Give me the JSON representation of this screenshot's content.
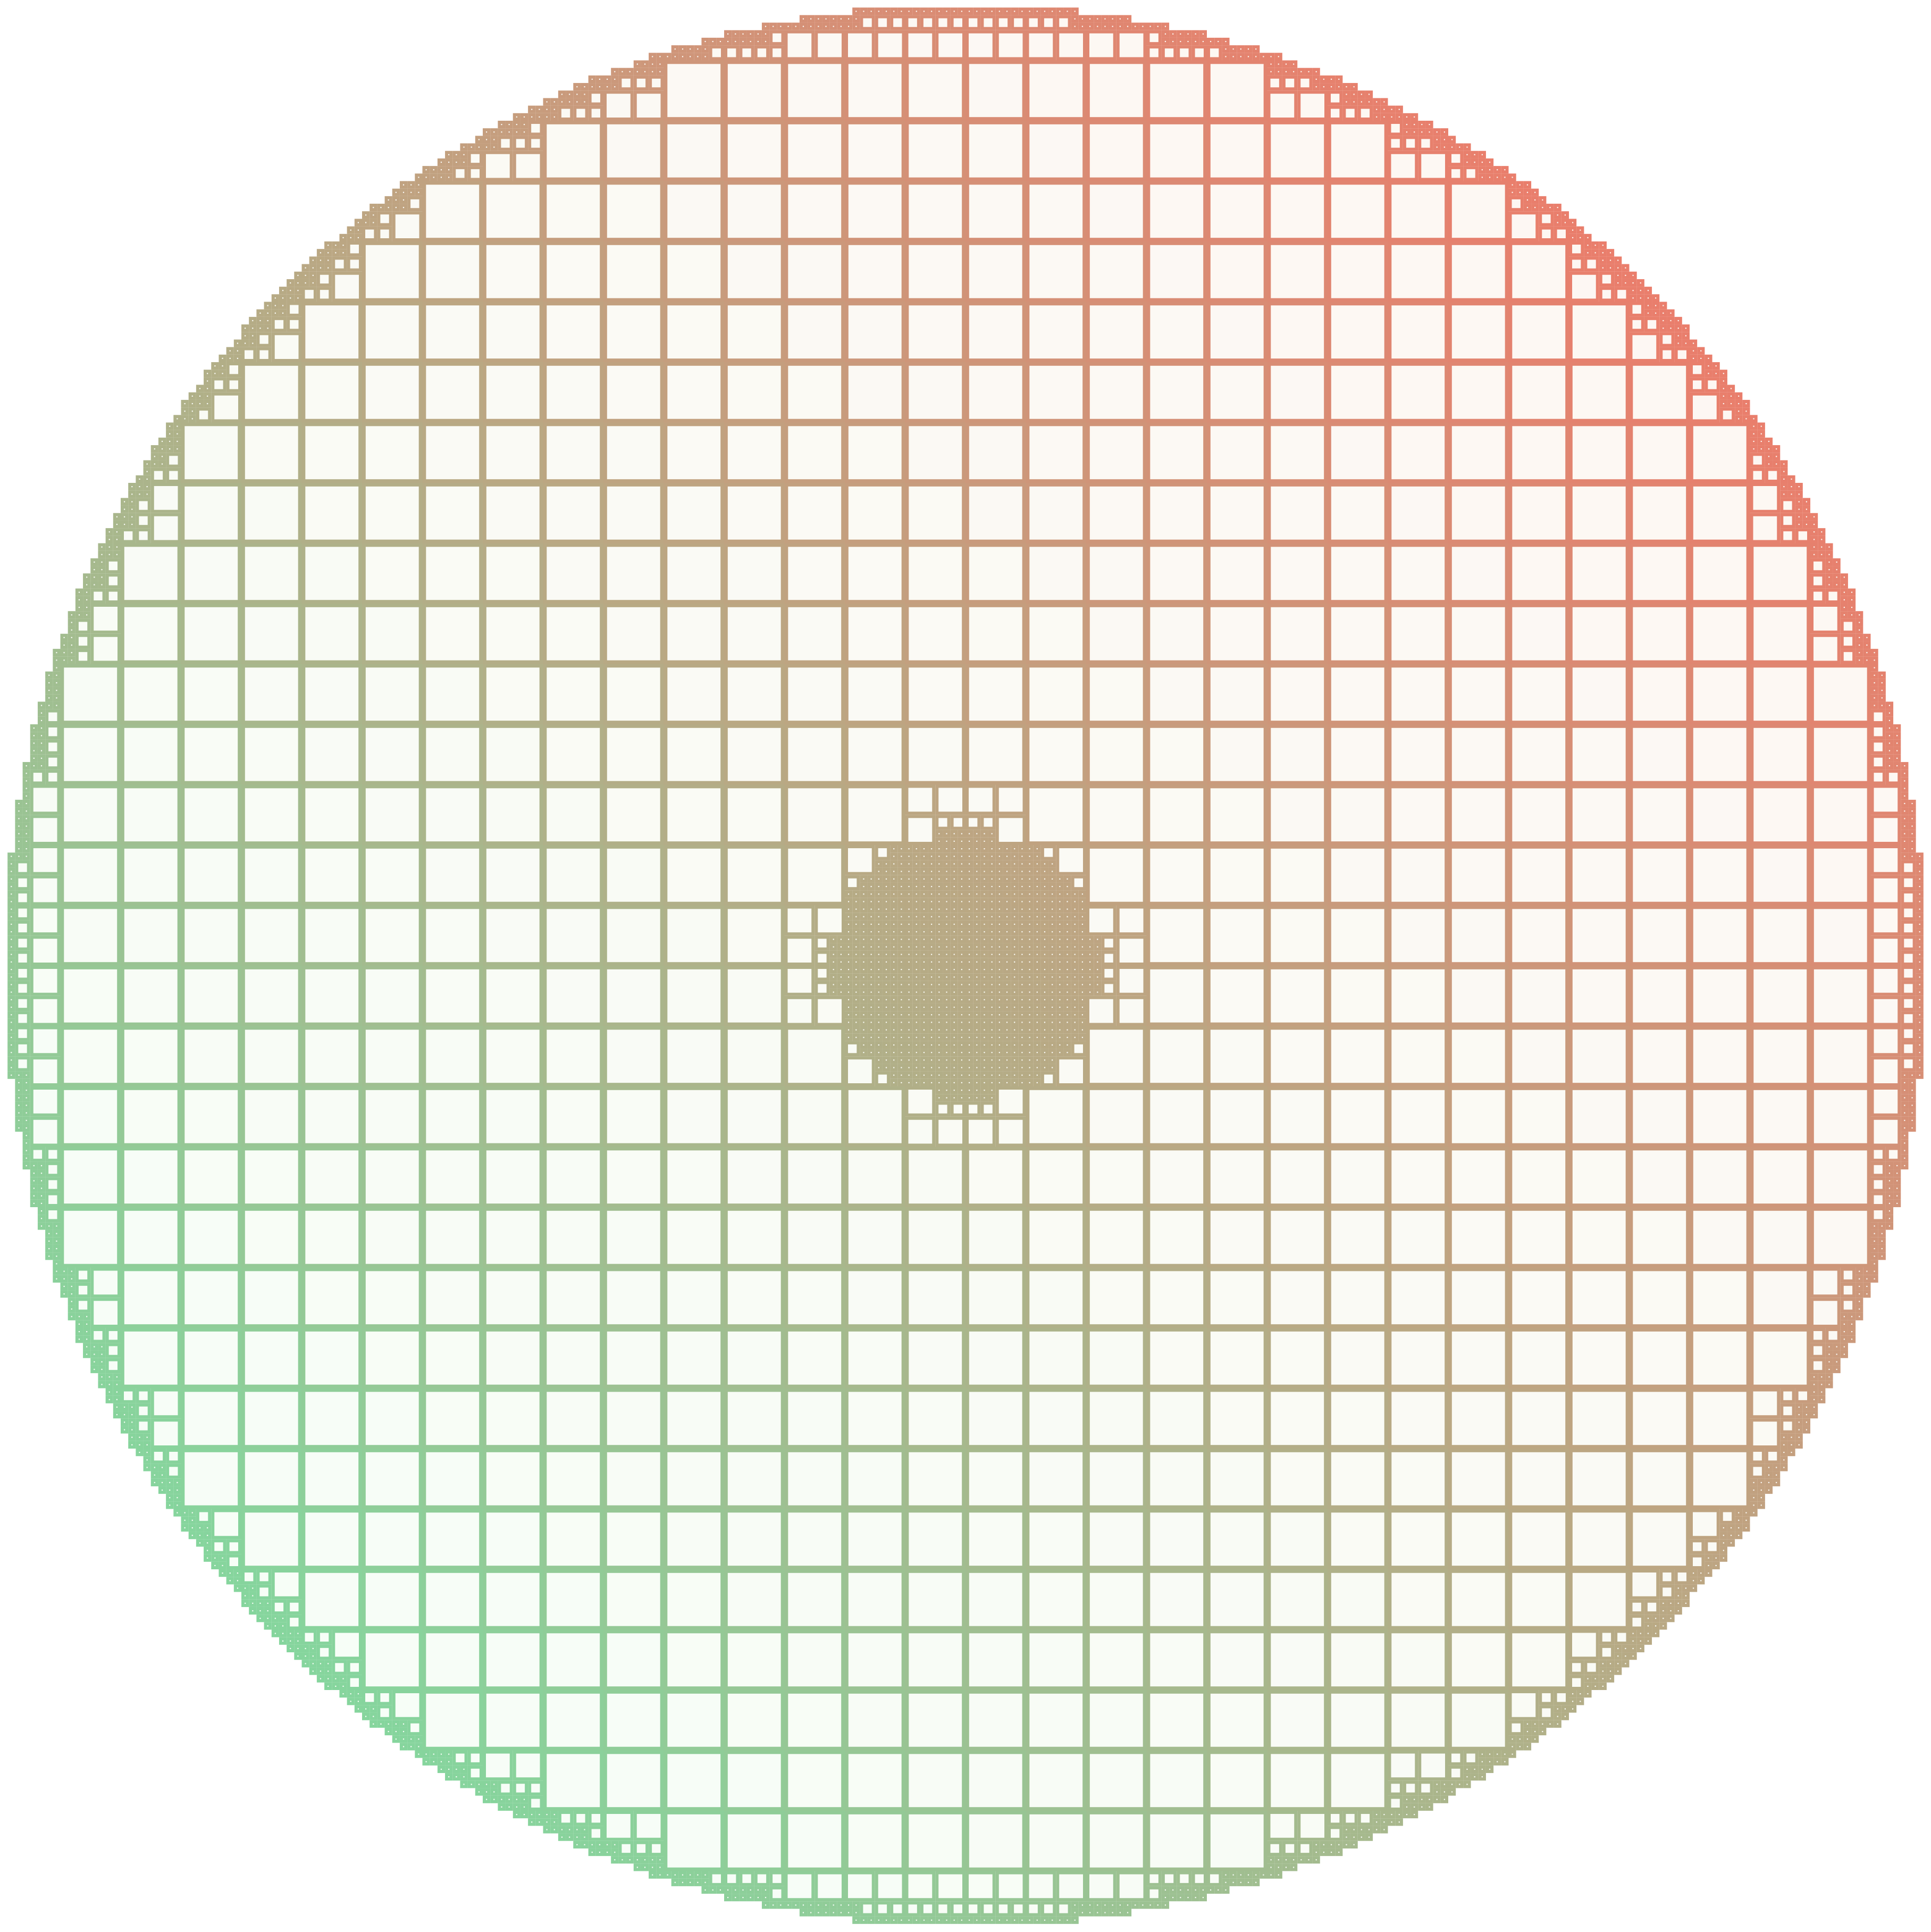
{
  "figure": {
    "kind": "quadtree-circle-pattern",
    "gradient": {
      "start_color": "#ff6b61",
      "end_color": "#70e8a8",
      "direction": "top-right-to-bottom-left"
    },
    "cell_border_colors": {
      "stroke_dark": "#a0a0a0",
      "fill_warm": "#fff6f2",
      "fill_cool": "#f5fff8",
      "background": "#ffffff"
    },
    "shape": "circle",
    "subdivision_levels": 5
  }
}
